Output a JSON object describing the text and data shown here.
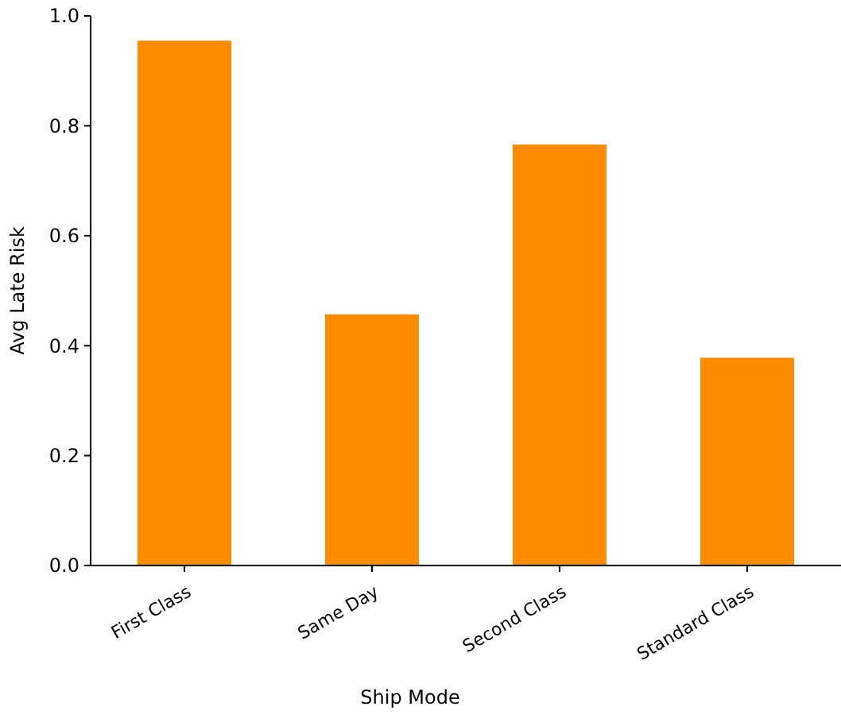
{
  "chart_data": {
    "type": "bar",
    "xlabel": "Ship Mode",
    "ylabel": "Avg Late Risk",
    "categories": [
      "First Class",
      "Same Day",
      "Second Class",
      "Standard Class"
    ],
    "values": [
      0.955,
      0.457,
      0.766,
      0.378
    ],
    "color": "#ff8c00",
    "ylim": [
      0,
      1.0
    ],
    "yticks": [
      {
        "value": 0,
        "label": "0.0"
      },
      {
        "value": 0.2,
        "label": "0.2"
      },
      {
        "value": 0.4,
        "label": "0.4"
      },
      {
        "value": 0.6,
        "label": "0.6"
      },
      {
        "value": 0.8,
        "label": "0.8"
      },
      {
        "value": 1.0,
        "label": "1.0"
      }
    ],
    "grid": false
  }
}
